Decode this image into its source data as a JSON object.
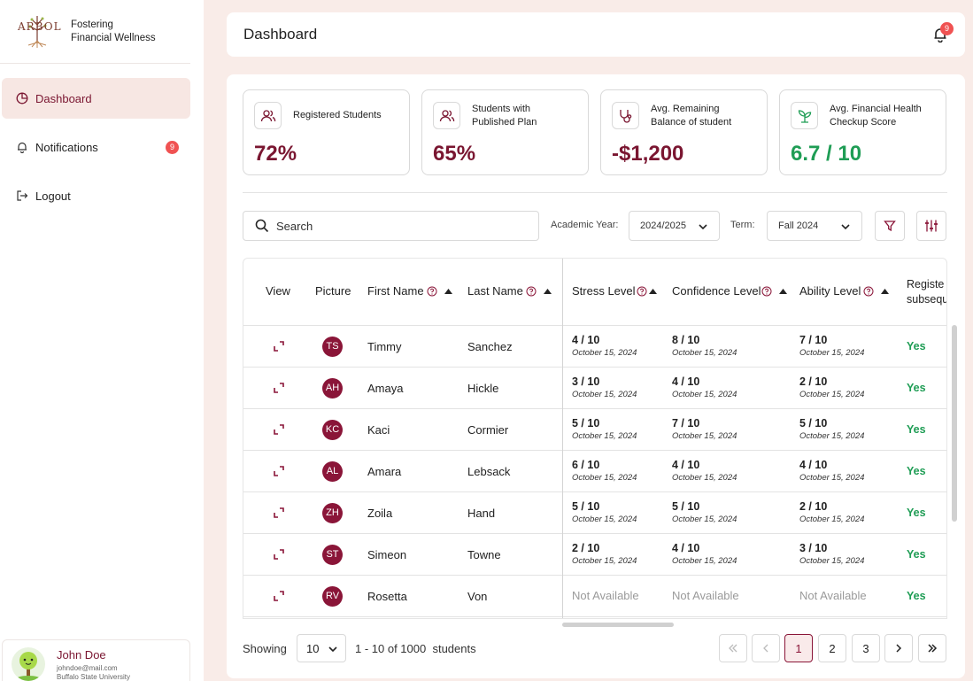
{
  "sidebar": {
    "brand_logo_text": "ARBOL",
    "brand_line1": "Fostering",
    "brand_line2": "Financial Wellness",
    "items": [
      {
        "label": "Dashboard",
        "icon": "pie-chart-icon"
      },
      {
        "label": "Notifications",
        "icon": "bell-icon",
        "badge": "9"
      },
      {
        "label": "Logout",
        "icon": "logout-icon"
      }
    ],
    "user": {
      "name": "John Doe",
      "email": "johndoe@mail.com",
      "university": "Buffalo State University"
    }
  },
  "header": {
    "title": "Dashboard",
    "notification_count": "9"
  },
  "stats": [
    {
      "label": "Registered Students",
      "value": "72%",
      "icon": "users-icon"
    },
    {
      "label": "Students with Published Plan",
      "value": "65%",
      "icon": "users-icon"
    },
    {
      "label": "Avg. Remaining Balance of student",
      "value": "-$1,200",
      "icon": "stethoscope-icon"
    },
    {
      "label": "Avg. Financial Health Checkup Score",
      "value": "6.7 / 10",
      "icon": "sprout-icon"
    }
  ],
  "filters": {
    "search_placeholder": "Search",
    "academic_year_label": "Academic Year:",
    "academic_year_value": "2024/2025",
    "term_label": "Term:",
    "term_value": "Fall 2024"
  },
  "table": {
    "columns": {
      "view": "View",
      "picture": "Picture",
      "first_name": "First Name",
      "last_name": "Last Name",
      "stress": "Stress Level",
      "confidence": "Confidence Level",
      "ability": "Ability Level",
      "registered_line1": "Registe",
      "registered_line2": "subsequ"
    },
    "rows": [
      {
        "initials": "TS",
        "first": "Timmy",
        "last": "Sanchez",
        "stress": "4 / 10",
        "stress_date": "October 15, 2024",
        "confidence": "8 / 10",
        "confidence_date": "October 15, 2024",
        "ability": "7 / 10",
        "ability_date": "October 15, 2024",
        "registered": "Yes"
      },
      {
        "initials": "AH",
        "first": "Amaya",
        "last": "Hickle",
        "stress": "3 / 10",
        "stress_date": "October 15, 2024",
        "confidence": "4 / 10",
        "confidence_date": "October 15, 2024",
        "ability": "2 / 10",
        "ability_date": "October 15, 2024",
        "registered": "Yes"
      },
      {
        "initials": "KC",
        "first": "Kaci",
        "last": "Cormier",
        "stress": "5 / 10",
        "stress_date": "October 15, 2024",
        "confidence": "7 / 10",
        "confidence_date": "October 15, 2024",
        "ability": "5 / 10",
        "ability_date": "October 15, 2024",
        "registered": "Yes"
      },
      {
        "initials": "AL",
        "first": "Amara",
        "last": "Lebsack",
        "stress": "6 / 10",
        "stress_date": "October 15, 2024",
        "confidence": "4 / 10",
        "confidence_date": "October 15, 2024",
        "ability": "4 / 10",
        "ability_date": "October 15, 2024",
        "registered": "Yes"
      },
      {
        "initials": "ZH",
        "first": "Zoila",
        "last": "Hand",
        "stress": "5 / 10",
        "stress_date": "October 15, 2024",
        "confidence": "5 / 10",
        "confidence_date": "October 15, 2024",
        "ability": "2 / 10",
        "ability_date": "October 15, 2024",
        "registered": "Yes"
      },
      {
        "initials": "ST",
        "first": "Simeon",
        "last": "Towne",
        "stress": "2 / 10",
        "stress_date": "October 15, 2024",
        "confidence": "4 / 10",
        "confidence_date": "October 15, 2024",
        "ability": "3 / 10",
        "ability_date": "October 15, 2024",
        "registered": "Yes"
      },
      {
        "initials": "RV",
        "first": "Rosetta",
        "last": "Von",
        "stress_na": "Not Available",
        "confidence_na": "Not Available",
        "ability_na": "Not Available",
        "registered": "Yes"
      }
    ]
  },
  "footer": {
    "showing_label": "Showing",
    "page_size": "10",
    "range_text": "1 - 10 of 1000  students",
    "pages": [
      "1",
      "2",
      "3"
    ],
    "current_page": "1"
  },
  "colors": {
    "brand": "#8a1538",
    "accent_bg": "#f7e7e3",
    "page_bg": "#f9ece8",
    "success": "#1f9d55",
    "badge": "#f05252"
  }
}
